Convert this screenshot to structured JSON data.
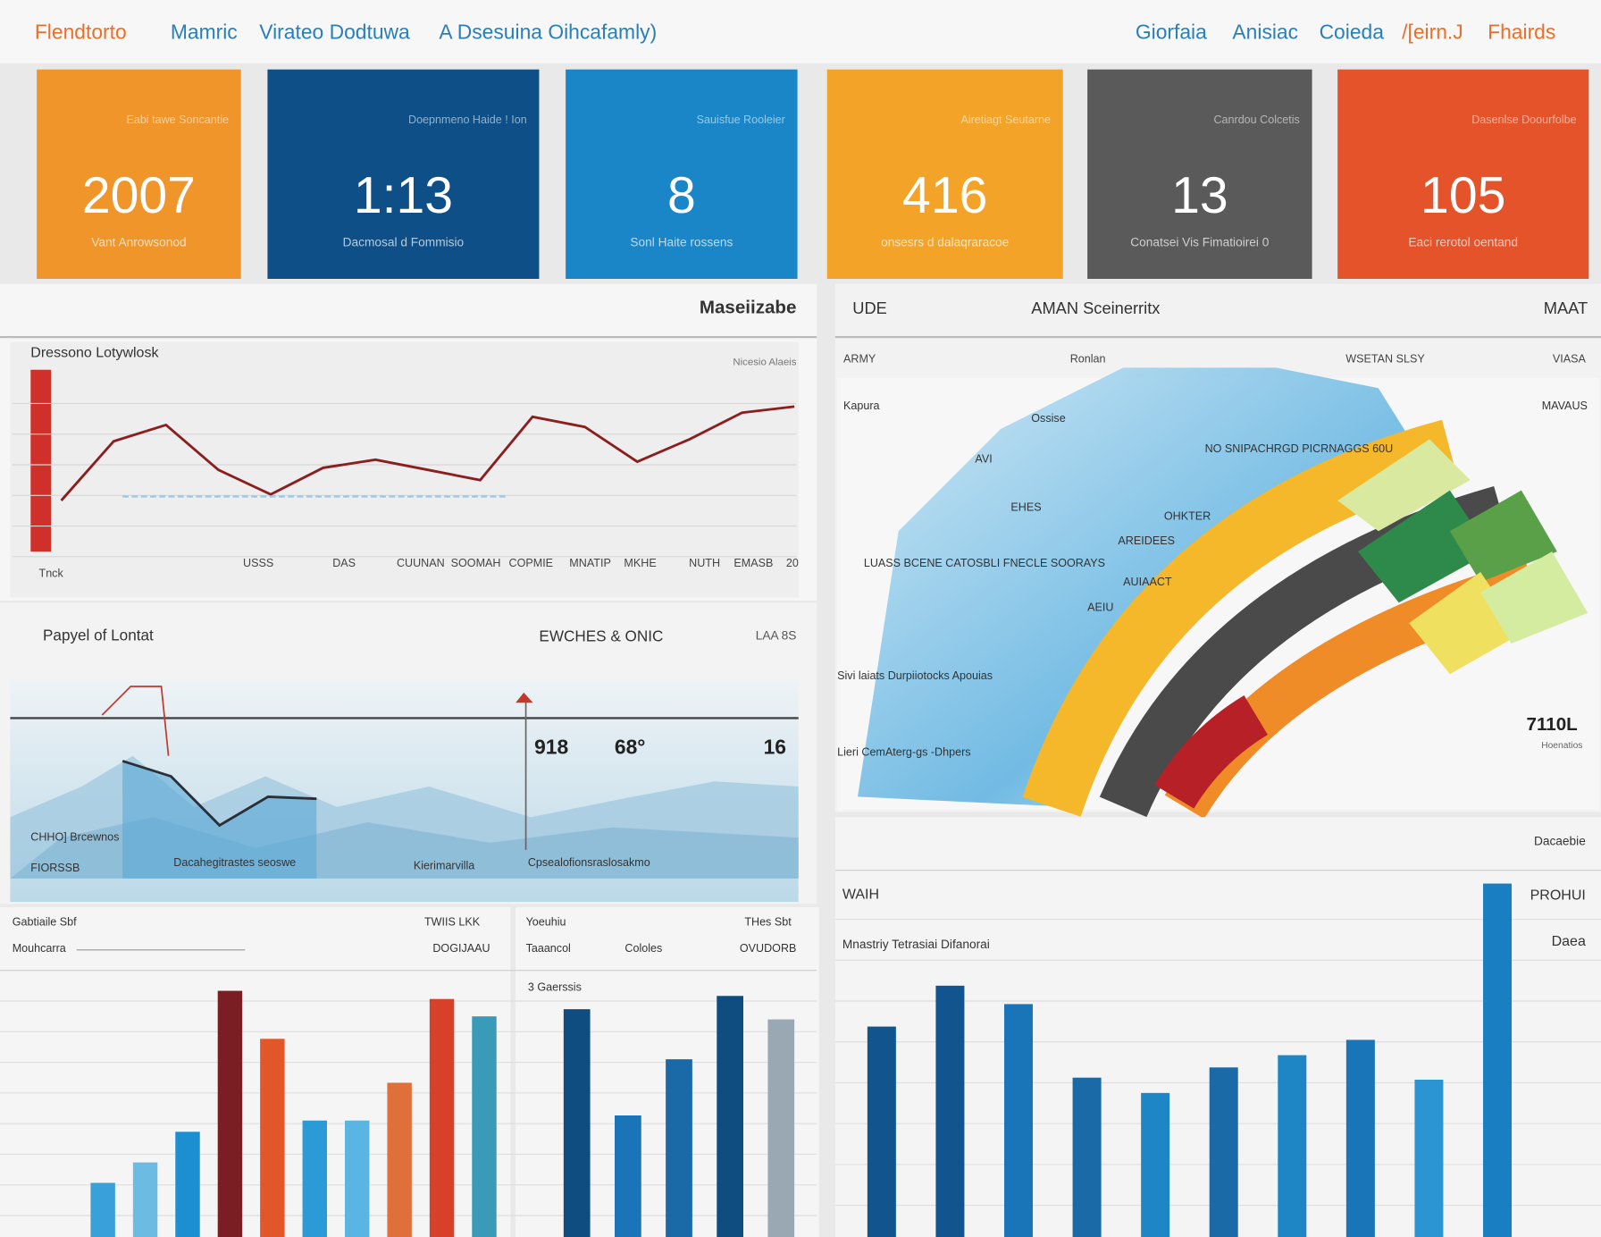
{
  "header": {
    "left": [
      "Flendtorto",
      "Mamric",
      "Virateo Dodtuwa",
      "A Dsesuina Oihcafamly)"
    ],
    "right": [
      "Giorfaia",
      "Anisiac",
      "Coieda",
      "/[eirn.J",
      "Fhairds"
    ]
  },
  "kpis": [
    {
      "caption": "Eabi tawe Soncantie",
      "value": "2007",
      "label": "Vant Anrowsonod",
      "color": "#f0952a"
    },
    {
      "caption": "Doepnmeno Haide ! Ion",
      "value": "1:13",
      "label": "Dacmosal d Fommisio",
      "color": "#0d4f86"
    },
    {
      "caption": "Sauisfue Rooleier",
      "value": "8",
      "label": "Sonl Haite rossens",
      "color": "#1a86c8"
    },
    {
      "caption": "Airetiagt Seutarne",
      "value": "416",
      "label": "onsesrs d dalaqraracoe",
      "color": "#f3a428"
    },
    {
      "caption": "Canrdou Colcetis",
      "value": "13",
      "label": "Conatsei Vis Fimatioirei 0",
      "color": "#5a5a5a"
    },
    {
      "caption": "Dasenlse Doourfolbe",
      "value": "105",
      "label": "Eaci rerotol oentand",
      "color": "#e4532a"
    }
  ],
  "line_panel": {
    "title": "Maseiizabe",
    "subtitle": "Dressono Lotywlosk",
    "note": "Nicesio Alaeis",
    "x_labels": [
      "Tnck",
      "USSS",
      "DAS",
      "CUUNAN",
      "SOOMAH",
      "COPMIE",
      "MNATIP",
      "MKHE",
      "NUTH",
      "EMASB",
      "20"
    ],
    "values": [
      35,
      64,
      72,
      50,
      38,
      51,
      55,
      50,
      45,
      76,
      71,
      54,
      65,
      78,
      81
    ],
    "ylim": [
      0,
      100
    ],
    "color": "#8b1f1f"
  },
  "area_panel": {
    "title": "Papyel of Lontat",
    "subtitle": "EWCHES & ONIC",
    "note": "LAA 8S",
    "figures": [
      "918",
      "68°",
      "16"
    ],
    "labels": [
      "CHHO] Brcewnos",
      "FIORSSB",
      "Dacahegitrastes seoswe",
      "Kierimarvilla",
      "Cpsealofionsraslosakmo"
    ],
    "values": [
      115,
      100,
      52,
      80,
      78
    ],
    "ylim": [
      0,
      200
    ]
  },
  "bars_left": {
    "headers": [
      "Gabtiaile Sbf",
      "TWIIS LKK",
      "Mouhcarra",
      "DOGIJAAU"
    ],
    "values": [
      53,
      73,
      103,
      241,
      194,
      114,
      114,
      151,
      233,
      216
    ],
    "colors": [
      "#3aa0d8",
      "#6cbbe3",
      "#1c8fd0",
      "#7a1e24",
      "#e2572a",
      "#2a9bd6",
      "#5ab5e2",
      "#e0703a",
      "#d8402a",
      "#3a9bb8"
    ],
    "ylim": [
      0,
      260
    ]
  },
  "bars_mid": {
    "headers": [
      "Yoeuhiu",
      "THes Sbt",
      "Taaancol",
      "Cololes",
      "OVUDORB",
      "3 Gaerssis"
    ],
    "values": [
      223,
      119,
      174,
      236,
      213
    ],
    "colors": [
      "#0f4c80",
      "#1a74b8",
      "#1a6aa8",
      "#0f4c80",
      "#9aa8b4"
    ],
    "ylim": [
      0,
      260
    ]
  },
  "arc_panel": {
    "headers": [
      "UDE",
      "AMAN Sceinerritx",
      "MAAT"
    ],
    "subheaders": [
      "ARMY",
      "Ronlan",
      "WSETAN SLSY",
      "VIASA"
    ],
    "labels": [
      "Kapura",
      "Ossise",
      "NO SNIPACHRGD PICRNAGGS 60U",
      "AVI",
      "EHES",
      "OHKTER",
      "AREIDEES",
      "LUASS BCENE CATOSBLI FNECLE SOORAYS",
      "AUIAACT",
      "AEIU",
      "Sivi laiats  Durpiiotocks Apouias",
      "Lieri CemAterg-gs  -Dhpers",
      "MAVAUS"
    ],
    "figure": "7110L",
    "figure_note": "Hoenatios"
  },
  "bars_right": {
    "headers": [
      "WAIH",
      "PROHUI",
      "Daea",
      "Mnastriy Tetrasiai Difanorai",
      "Dacaebie"
    ],
    "values": [
      206,
      246,
      228,
      156,
      141,
      166,
      178,
      193,
      154,
      346
    ],
    "colors": [
      "#12558e",
      "#12558e",
      "#1a74b8",
      "#1a6aa8",
      "#1f86c6",
      "#1a6aa8",
      "#1f86c6",
      "#1a74b8",
      "#2a95d2",
      "#1a7ec2"
    ],
    "ylim": [
      0,
      360
    ]
  }
}
